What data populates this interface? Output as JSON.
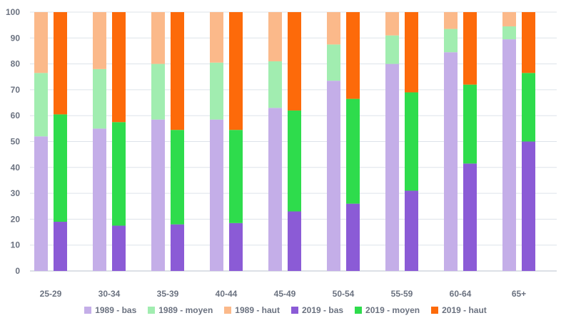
{
  "chart_data": {
    "type": "bar",
    "stacked": true,
    "grouped": true,
    "categories": [
      "25-29",
      "30-34",
      "35-39",
      "40-44",
      "45-49",
      "50-54",
      "55-59",
      "60-64",
      "65+"
    ],
    "ylim": [
      0,
      100
    ],
    "yticks": [
      0,
      10,
      20,
      30,
      40,
      50,
      60,
      70,
      80,
      90,
      100
    ],
    "grid": true,
    "legend_position": "bottom",
    "groups": [
      {
        "year": "1989",
        "series": [
          {
            "name": "1989 - bas",
            "color": "#c4aee8",
            "values": [
              52,
              55,
              58.5,
              58.5,
              63,
              73.5,
              80,
              84.5,
              89.5
            ]
          },
          {
            "name": "1989 - moyen",
            "color": "#a1edb0",
            "values": [
              24.5,
              23,
              21.5,
              22,
              18,
              14,
              11,
              9,
              5
            ]
          },
          {
            "name": "1989 - haut",
            "color": "#fbb98a",
            "values": [
              23.5,
              22,
              20,
              19.5,
              19,
              12.5,
              9,
              6.5,
              5.5
            ]
          }
        ]
      },
      {
        "year": "2019",
        "series": [
          {
            "name": "2019 - bas",
            "color": "#8b5bd6",
            "values": [
              19,
              17.5,
              18,
              18.5,
              23,
              26,
              31,
              41.5,
              50
            ]
          },
          {
            "name": "2019 - moyen",
            "color": "#2edc4c",
            "values": [
              41.5,
              40,
              36.5,
              36,
              39,
              40.5,
              38,
              30.5,
              26.5
            ]
          },
          {
            "name": "2019 - haut",
            "color": "#fd6a0a",
            "values": [
              39.5,
              42.5,
              45.5,
              45.5,
              38,
              33.5,
              31,
              28,
              23.5
            ]
          }
        ]
      }
    ],
    "colors": {
      "grid": "#dde3ea",
      "axis": "#b8c2cc",
      "text": "#6b7280"
    }
  }
}
